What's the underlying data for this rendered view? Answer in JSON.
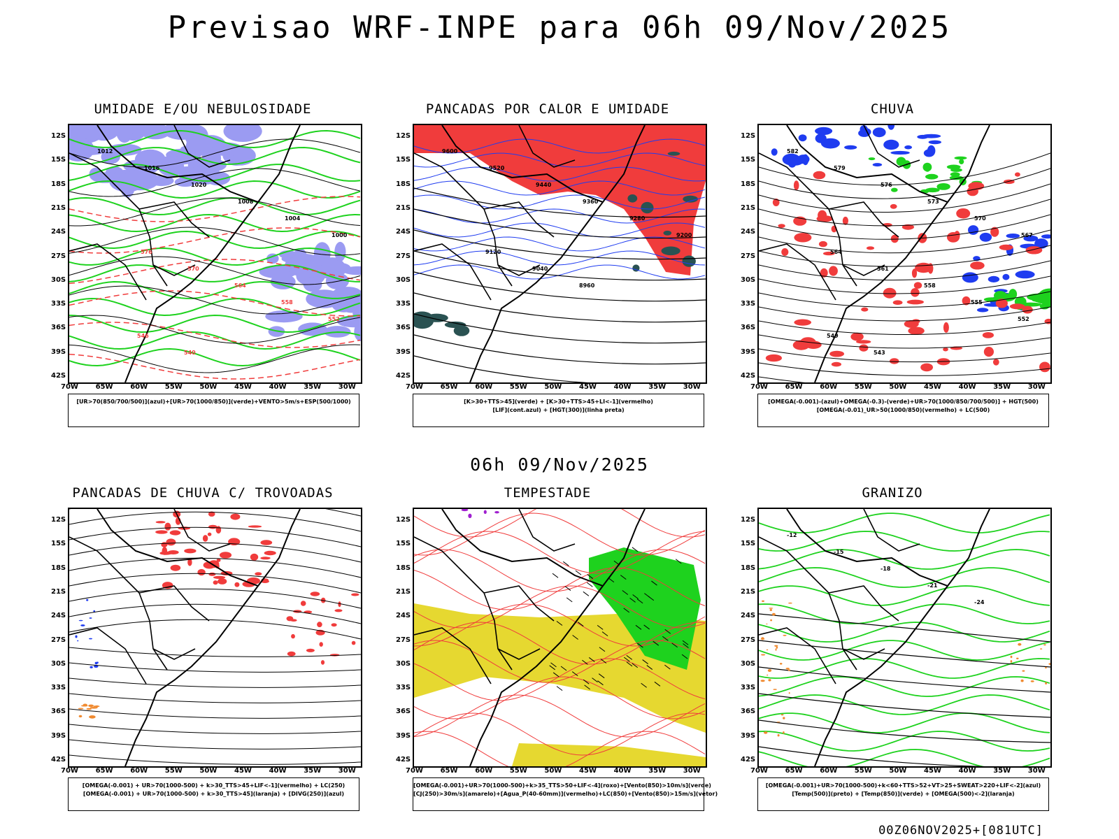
{
  "header": {
    "title": "Previsao WRF-INPE  para 06h 09/Nov/2025",
    "mid_title": "06h 09/Nov/2025",
    "footer": "00Z06NOV2025+[081UTC]"
  },
  "axes": {
    "lat_labels": [
      "12S",
      "15S",
      "18S",
      "21S",
      "24S",
      "27S",
      "30S",
      "33S",
      "36S",
      "39S",
      "42S"
    ],
    "lon_labels": [
      "70W",
      "65W",
      "60W",
      "55W",
      "50W",
      "45W",
      "40W",
      "35W",
      "30W"
    ]
  },
  "panels": [
    {
      "id": "umidade",
      "title": "UMIDADE E/OU NEBULOSIDADE",
      "legend": [
        "[UR>70(850/700/500)](azul)+[UR>70(1000/850)](verde)+VENTO>5m/s+ESP(500/1000)"
      ],
      "contour_labels": [
        "1012",
        "1016",
        "1020",
        "1008",
        "1004",
        "1000",
        "576",
        "570",
        "564",
        "558",
        "552",
        "546",
        "540"
      ]
    },
    {
      "id": "pancadas-calor",
      "title": "PANCADAS POR CALOR E UMIDADE",
      "legend": [
        "[K>30+TTS>45](verde) + [K>30+TTS>45+LI<-1](vermelho)",
        "[LIF](cont.azul) + [HGT(300)](linha preta)"
      ],
      "contour_labels": [
        "9600",
        "9520",
        "9440",
        "9360",
        "9280",
        "9200",
        "9120",
        "9040",
        "8960"
      ]
    },
    {
      "id": "chuva",
      "title": "CHUVA",
      "legend": [
        "[OMEGA(-0.001)-(azul)+OMEGA(-0.3)-(verde)+UR>70(1000/850/700/500)] + HGT(500)",
        "[OMEGA(-0.01)_UR>50(1000/850)(vermelho) + LC(500)"
      ],
      "contour_labels": [
        "582",
        "579",
        "576",
        "573",
        "570",
        "567",
        "564",
        "561",
        "558",
        "555",
        "552",
        "549",
        "543"
      ]
    },
    {
      "id": "trovoadas",
      "title": "PANCADAS DE CHUVA C/ TROVOADAS",
      "legend": [
        "[OMEGA(-0.001) + UR>70(1000-500) + k>30_TTS>45+LIF<-1](vermelho) + LC(250)",
        "[OMEGA(-0.001) + UR>70(1000-500) + k>30_TTS>45](laranja) + [DIVG(250)](azul)"
      ],
      "contour_labels": []
    },
    {
      "id": "tempestade",
      "title": "TEMPESTADE",
      "legend": [
        "[OMEGA(-0.001)+UR>70(1000-500)+k>35_TTS>50+LIF<-4](roxo)+[Vento(850)>10m/s](verde)",
        "[CJ(250)>30m/s](amarelo)+[Agua_P(40-60mm)](vermelho)+LC(850)+[Vento(850)>15m/s](vetor)"
      ],
      "contour_labels": []
    },
    {
      "id": "granizo",
      "title": "GRANIZO",
      "legend": [
        "[OMEGA(-0.001)+UR>70(1000-500)+k<60+TTS>52+VT>25+SWEAT>220+LIF<-2](azul)",
        "[Temp(500)](preto) + [Temp(850)](verde) + [OMEGA(500)<-2](laranja)"
      ],
      "contour_labels": [
        "-12",
        "-15",
        "-18",
        "-21",
        "-24"
      ]
    }
  ],
  "colors": {
    "blue_fill": "#9b9bf2",
    "blue_strong": "#1f3cf0",
    "green": "#1ed21e",
    "red": "#f03c3c",
    "dark_teal": "#2a5252",
    "yellow": "#e6d830",
    "orange": "#f08a30",
    "purple": "#a020d0"
  }
}
